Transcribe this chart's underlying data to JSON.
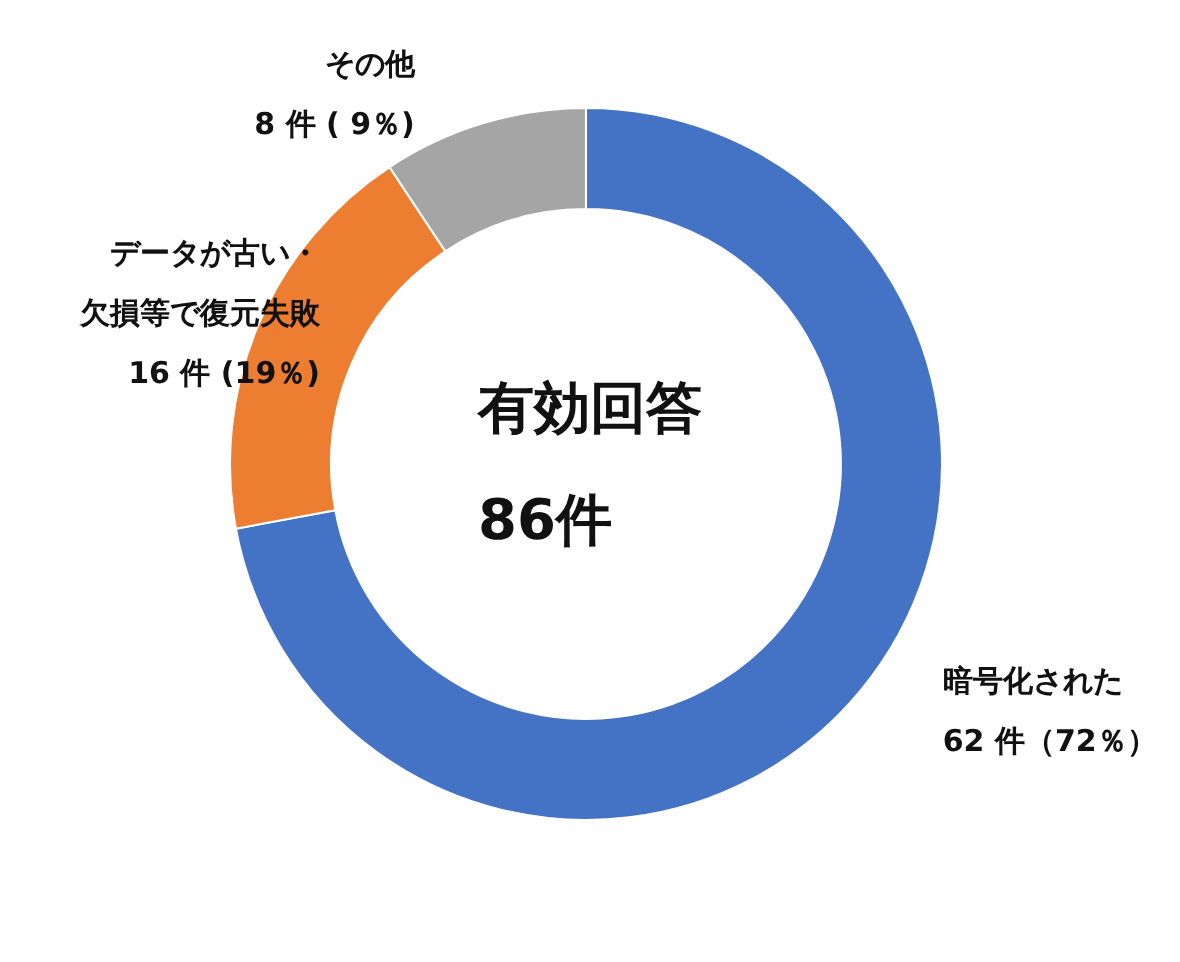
{
  "chart_data": {
    "type": "donut",
    "categories": [
      "暗号化された",
      "データが古い・欠損等で復元失敗",
      "その他"
    ],
    "values": [
      62,
      16,
      8
    ],
    "value_labels": [
      "62 件（72％）",
      "16 件 (19％)",
      "8 件 ( 9％)"
    ],
    "colors": [
      "#4472c4",
      "#ed7d31",
      "#a5a5a5"
    ],
    "annotations": [
      "有効回答",
      "86件"
    ],
    "legend": false
  }
}
